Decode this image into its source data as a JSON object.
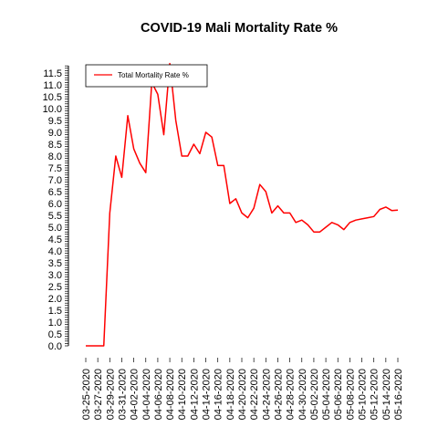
{
  "chart_data": {
    "type": "line",
    "title": "COVID-19 Mali Mortality Rate %",
    "xlabel": "",
    "ylabel": "",
    "ylim": [
      0,
      11.8
    ],
    "y_ticks": [
      "0.0",
      "0.5",
      "1.0",
      "1.5",
      "2.0",
      "2.5",
      "3.0",
      "3.5",
      "4.0",
      "4.5",
      "5.0",
      "5.5",
      "6.0",
      "6.5",
      "7.0",
      "7.5",
      "8.0",
      "8.5",
      "9.0",
      "9.5",
      "10.0",
      "10.5",
      "11.0",
      "11.5"
    ],
    "x_tick_labels": [
      "03-25-2020",
      "03-27-2020",
      "03-29-2020",
      "03-31-2020",
      "04-02-2020",
      "04-04-2020",
      "04-06-2020",
      "04-08-2020",
      "04-10-2020",
      "04-12-2020",
      "04-14-2020",
      "04-16-2020",
      "04-18-2020",
      "04-20-2020",
      "04-22-2020",
      "04-24-2020",
      "04-26-2020",
      "04-28-2020",
      "04-30-2020",
      "05-02-2020",
      "05-04-2020",
      "05-06-2020",
      "05-08-2020",
      "05-10-2020",
      "05-12-2020",
      "05-14-2020",
      "05-16-2020"
    ],
    "grid": false,
    "legend_position": "top-left",
    "series": [
      {
        "name": "Total Mortality Rate %",
        "color": "#ff0000",
        "x": [
          "03-25-2020",
          "03-26-2020",
          "03-27-2020",
          "03-28-2020",
          "03-29-2020",
          "03-30-2020",
          "03-31-2020",
          "04-01-2020",
          "04-02-2020",
          "04-03-2020",
          "04-04-2020",
          "04-05-2020",
          "04-06-2020",
          "04-07-2020",
          "04-08-2020",
          "04-09-2020",
          "04-10-2020",
          "04-11-2020",
          "04-12-2020",
          "04-13-2020",
          "04-14-2020",
          "04-15-2020",
          "04-16-2020",
          "04-17-2020",
          "04-18-2020",
          "04-19-2020",
          "04-20-2020",
          "04-21-2020",
          "04-22-2020",
          "04-23-2020",
          "04-24-2020",
          "04-25-2020",
          "04-26-2020",
          "04-27-2020",
          "04-28-2020",
          "04-29-2020",
          "04-30-2020",
          "05-01-2020",
          "05-02-2020",
          "05-03-2020",
          "05-04-2020",
          "05-05-2020",
          "05-06-2020",
          "05-07-2020",
          "05-08-2020",
          "05-09-2020",
          "05-10-2020",
          "05-11-2020",
          "05-12-2020",
          "05-13-2020",
          "05-14-2020",
          "05-15-2020",
          "05-16-2020"
        ],
        "values": [
          0,
          0,
          0,
          0,
          5.6,
          8.0,
          7.1,
          9.7,
          8.3,
          7.7,
          7.3,
          11.1,
          10.6,
          8.9,
          11.9,
          9.5,
          8.0,
          8.0,
          8.5,
          8.1,
          9.0,
          8.8,
          7.6,
          7.6,
          6.0,
          6.2,
          5.6,
          5.4,
          5.8,
          6.8,
          6.5,
          5.6,
          5.9,
          5.6,
          5.6,
          5.2,
          5.3,
          5.1,
          4.8,
          4.8,
          5.0,
          5.2,
          5.1,
          4.9,
          5.2,
          5.3,
          5.35,
          5.4,
          5.45,
          5.75,
          5.85,
          5.7,
          5.72
        ]
      }
    ]
  }
}
